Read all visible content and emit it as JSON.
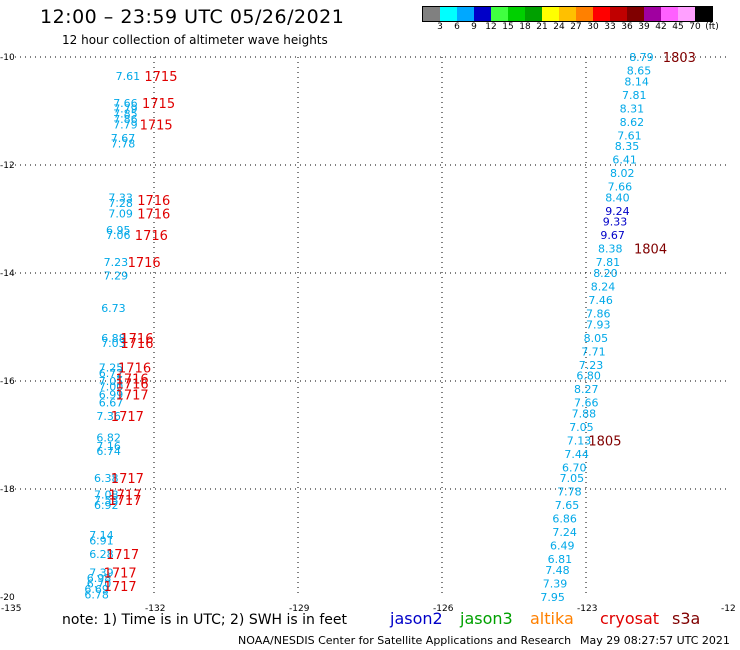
{
  "header": {
    "title": "12:00 – 23:59 UTC 05/26/2021",
    "subtitle": "12 hour collection of altimeter wave heights"
  },
  "color_scale": {
    "labels": [
      "3",
      "6",
      "9",
      "12",
      "15",
      "18",
      "21",
      "24",
      "27",
      "30",
      "33",
      "36",
      "39",
      "42",
      "45",
      "70",
      "(ft)"
    ],
    "colors": [
      "#808080",
      "#00ffff",
      "#00a8ff",
      "#0000c8",
      "#40ff40",
      "#00d000",
      "#00a000",
      "#ffff00",
      "#ffc000",
      "#ff8000",
      "#ff0000",
      "#c00000",
      "#800000",
      "#a000a0",
      "#ff60ff",
      "#ffa0ff",
      "#000000"
    ]
  },
  "axes": {
    "x_ticks": [
      "-135",
      "-132",
      "-129",
      "-126",
      "-123",
      "-12"
    ],
    "y_ticks": [
      "-10",
      "-12",
      "-14",
      "-16",
      "-18",
      "-20"
    ]
  },
  "tracks": {
    "cyan_color": "#00a8e8",
    "blue_color": "#0000c8",
    "red_color": "#e00000",
    "darkred_color": "#800000",
    "left_values": [
      {
        "v": "7.61",
        "lon": -132.8,
        "lat": -10.35
      },
      {
        "v": "7.66",
        "lon": -132.85,
        "lat": -10.85
      },
      {
        "v": "7.79",
        "lon": -132.85,
        "lat": -10.95
      },
      {
        "v": "7.85",
        "lon": -132.85,
        "lat": -11.05
      },
      {
        "v": "7.86",
        "lon": -132.85,
        "lat": -11.15
      },
      {
        "v": "7.79",
        "lon": -132.85,
        "lat": -11.25
      },
      {
        "v": "7.67",
        "lon": -132.9,
        "lat": -11.5
      },
      {
        "v": "7.78",
        "lon": -132.9,
        "lat": -11.6
      },
      {
        "v": "7.33",
        "lon": -132.95,
        "lat": -12.6
      },
      {
        "v": "7.28",
        "lon": -132.95,
        "lat": -12.7
      },
      {
        "v": "7.09",
        "lon": -132.95,
        "lat": -12.9
      },
      {
        "v": "6.95",
        "lon": -133.0,
        "lat": -13.2
      },
      {
        "v": "7.06",
        "lon": -133.0,
        "lat": -13.3
      },
      {
        "v": "7.23",
        "lon": -133.05,
        "lat": -13.8
      },
      {
        "v": "7.29",
        "lon": -133.05,
        "lat": -14.05
      },
      {
        "v": "6.73",
        "lon": -133.1,
        "lat": -14.65
      },
      {
        "v": "6.88",
        "lon": -133.1,
        "lat": -15.2
      },
      {
        "v": "7.03",
        "lon": -133.1,
        "lat": -15.3
      },
      {
        "v": "7.25",
        "lon": -133.15,
        "lat": -15.75
      },
      {
        "v": "6.72",
        "lon": -133.15,
        "lat": -15.85
      },
      {
        "v": "7.05",
        "lon": -133.15,
        "lat": -16.0
      },
      {
        "v": "7.00",
        "lon": -133.15,
        "lat": -16.1
      },
      {
        "v": "6.99",
        "lon": -133.15,
        "lat": -16.25
      },
      {
        "v": "6.67",
        "lon": -133.15,
        "lat": -16.4
      },
      {
        "v": "7.36",
        "lon": -133.2,
        "lat": -16.65
      },
      {
        "v": "6.82",
        "lon": -133.2,
        "lat": -17.05
      },
      {
        "v": "7.16",
        "lon": -133.2,
        "lat": -17.2
      },
      {
        "v": "6.74",
        "lon": -133.2,
        "lat": -17.3
      },
      {
        "v": "6.38",
        "lon": -133.25,
        "lat": -17.8
      },
      {
        "v": "7.08",
        "lon": -133.25,
        "lat": -18.1
      },
      {
        "v": "7.53",
        "lon": -133.25,
        "lat": -18.2
      },
      {
        "v": "6.92",
        "lon": -133.25,
        "lat": -18.3
      },
      {
        "v": "7.14",
        "lon": -133.35,
        "lat": -18.85
      },
      {
        "v": "6.91",
        "lon": -133.35,
        "lat": -18.95
      },
      {
        "v": "6.28",
        "lon": -133.35,
        "lat": -19.2
      },
      {
        "v": "7.39",
        "lon": -133.35,
        "lat": -19.55
      },
      {
        "v": "6.98",
        "lon": -133.4,
        "lat": -19.65
      },
      {
        "v": "6.70",
        "lon": -133.4,
        "lat": -19.75
      },
      {
        "v": "6.69",
        "lon": -133.45,
        "lat": -19.85
      },
      {
        "v": "6.78",
        "lon": -133.45,
        "lat": -19.95
      }
    ],
    "left_times": [
      {
        "t": "1715",
        "lon": -132.2,
        "lat": -10.35
      },
      {
        "t": "1715",
        "lon": -132.25,
        "lat": -10.85
      },
      {
        "t": "1715",
        "lon": -132.3,
        "lat": -11.25
      },
      {
        "t": "1716",
        "lon": -132.35,
        "lat": -12.65
      },
      {
        "t": "1716",
        "lon": -132.35,
        "lat": -12.9
      },
      {
        "t": "1716",
        "lon": -132.4,
        "lat": -13.3
      },
      {
        "t": "1716",
        "lon": -132.55,
        "lat": -13.8
      },
      {
        "t": "1716",
        "lon": -132.7,
        "lat": -15.2
      },
      {
        "t": "1716",
        "lon": -132.7,
        "lat": -15.3
      },
      {
        "t": "1716",
        "lon": -132.75,
        "lat": -15.75
      },
      {
        "t": "1716",
        "lon": -132.8,
        "lat": -15.95
      },
      {
        "t": "1716",
        "lon": -132.8,
        "lat": -16.05
      },
      {
        "t": "1717",
        "lon": -132.8,
        "lat": -16.25
      },
      {
        "t": "1717",
        "lon": -132.9,
        "lat": -16.65
      },
      {
        "t": "1717",
        "lon": -132.9,
        "lat": -17.8
      },
      {
        "t": "1717",
        "lon": -132.95,
        "lat": -18.1
      },
      {
        "t": "1717",
        "lon": -132.95,
        "lat": -18.2
      },
      {
        "t": "1717",
        "lon": -133.0,
        "lat": -19.2
      },
      {
        "t": "1717",
        "lon": -133.05,
        "lat": -19.55
      },
      {
        "t": "1717",
        "lon": -133.05,
        "lat": -19.8
      }
    ],
    "right_values": [
      {
        "v": "8.79",
        "lon": -122.1,
        "lat": -10.0
      },
      {
        "v": "8.65",
        "lon": -122.15,
        "lat": -10.25
      },
      {
        "v": "8.14",
        "lon": -122.2,
        "lat": -10.45
      },
      {
        "v": "7.81",
        "lon": -122.25,
        "lat": -10.7
      },
      {
        "v": "8.31",
        "lon": -122.3,
        "lat": -10.95
      },
      {
        "v": "8.62",
        "lon": -122.3,
        "lat": -11.2
      },
      {
        "v": "7.61",
        "lon": -122.35,
        "lat": -11.45
      },
      {
        "v": "8.35",
        "lon": -122.4,
        "lat": -11.65
      },
      {
        "v": "6.41",
        "lon": -122.45,
        "lat": -11.9
      },
      {
        "v": "8.02",
        "lon": -122.5,
        "lat": -12.15
      },
      {
        "v": "7.66",
        "lon": -122.55,
        "lat": -12.4
      },
      {
        "v": "8.40",
        "lon": -122.6,
        "lat": -12.6
      },
      {
        "v": "9.24",
        "lon": -122.6,
        "lat": -12.85
      },
      {
        "v": "9.33",
        "lon": -122.65,
        "lat": -13.05
      },
      {
        "v": "9.67",
        "lon": -122.7,
        "lat": -13.3
      },
      {
        "v": "8.38",
        "lon": -122.75,
        "lat": -13.55
      },
      {
        "v": "7.81",
        "lon": -122.8,
        "lat": -13.8
      },
      {
        "v": "8.20",
        "lon": -122.85,
        "lat": -14.0
      },
      {
        "v": "8.24",
        "lon": -122.9,
        "lat": -14.25
      },
      {
        "v": "7.46",
        "lon": -122.95,
        "lat": -14.5
      },
      {
        "v": "7.86",
        "lon": -123.0,
        "lat": -14.75
      },
      {
        "v": "7.93",
        "lon": -123.0,
        "lat": -14.95
      },
      {
        "v": "8.05",
        "lon": -123.05,
        "lat": -15.2
      },
      {
        "v": "7.71",
        "lon": -123.1,
        "lat": -15.45
      },
      {
        "v": "7.23",
        "lon": -123.15,
        "lat": -15.7
      },
      {
        "v": "6.80",
        "lon": -123.2,
        "lat": -15.9
      },
      {
        "v": "8.27",
        "lon": -123.25,
        "lat": -16.15
      },
      {
        "v": "7.66",
        "lon": -123.25,
        "lat": -16.4
      },
      {
        "v": "7.88",
        "lon": -123.3,
        "lat": -16.6
      },
      {
        "v": "7.05",
        "lon": -123.35,
        "lat": -16.85
      },
      {
        "v": "7.13",
        "lon": -123.4,
        "lat": -17.1
      },
      {
        "v": "7.44",
        "lon": -123.45,
        "lat": -17.35
      },
      {
        "v": "6.70",
        "lon": -123.5,
        "lat": -17.6
      },
      {
        "v": "7.05",
        "lon": -123.55,
        "lat": -17.8
      },
      {
        "v": "7.78",
        "lon": -123.6,
        "lat": -18.05
      },
      {
        "v": "7.65",
        "lon": -123.65,
        "lat": -18.3
      },
      {
        "v": "6.86",
        "lon": -123.7,
        "lat": -18.55
      },
      {
        "v": "7.24",
        "lon": -123.7,
        "lat": -18.8
      },
      {
        "v": "6.49",
        "lon": -123.75,
        "lat": -19.05
      },
      {
        "v": "6.81",
        "lon": -123.8,
        "lat": -19.3
      },
      {
        "v": "7.48",
        "lon": -123.85,
        "lat": -19.5
      },
      {
        "v": "7.39",
        "lon": -123.9,
        "lat": -19.75
      },
      {
        "v": "7.95",
        "lon": -123.95,
        "lat": -20.0
      }
    ],
    "right_blue_indices": [
      12,
      13,
      14
    ],
    "right_times": [
      {
        "t": "1803",
        "lon": -121.4,
        "lat": -10.0
      },
      {
        "t": "1804",
        "lon": -122.0,
        "lat": -13.55
      },
      {
        "t": "1805",
        "lon": -122.95,
        "lat": -17.1
      }
    ]
  },
  "footer": {
    "note": "note:  1) Time is in UTC;  2) SWH is in feet",
    "legend": [
      {
        "label": "jason2",
        "color": "#0000c8"
      },
      {
        "label": "jason3",
        "color": "#00a000"
      },
      {
        "label": "altika",
        "color": "#ff8000"
      },
      {
        "label": "cryosat",
        "color": "#e00000"
      },
      {
        "label": "s3a",
        "color": "#800000"
      }
    ],
    "credit": "NOAA/NESDIS Center for Satellite Applications and Research",
    "timestamp": "May 29 08:27:57 UTC 2021"
  }
}
